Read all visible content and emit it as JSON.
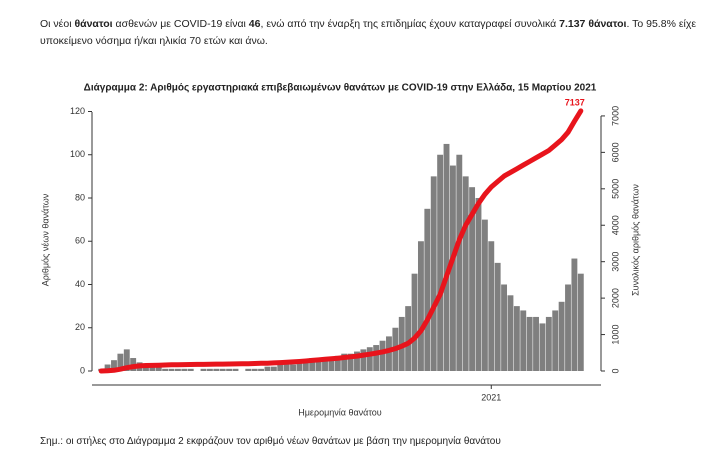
{
  "intro": [
    "Οι νέοι ",
    "θάνατοι",
    " ασθενών με COVID-19 είναι ",
    "46",
    ", ενώ από την έναρξη της επιδημίας έχουν καταγραφεί συνολικά ",
    "7.137 θάνατοι",
    ".  Το 95.8% είχε υποκείμενο νόσημα ή/και ηλικία 70 ετών και άνω."
  ],
  "chart_data": {
    "type": "bar",
    "title": "Διάγραμμα 2: Αριθμός εργαστηριακά επιβεβαιωμένων θανάτων με COVID-19 στην Ελλάδα, 15 Μαρτίου 2021",
    "xlabel": "Ημερομηνία θανάτου",
    "ylabel": "Αριθμός νέων θανάτων",
    "y2label": "Συνολικός αριθμός θανάτων",
    "categories": [
      null,
      null,
      null,
      null,
      null,
      null,
      null,
      null,
      null,
      null,
      null,
      null,
      null,
      null,
      null,
      null,
      null,
      null,
      null,
      null,
      null,
      null,
      null,
      null,
      null,
      null,
      null,
      null,
      null,
      null,
      null,
      null,
      null,
      null,
      null,
      null,
      null,
      null,
      null,
      null,
      null,
      null,
      null,
      null,
      null,
      null,
      null,
      null,
      null,
      null,
      null,
      null,
      null,
      null,
      null,
      null,
      null,
      null,
      null,
      null,
      null,
      "2021",
      null,
      null,
      null,
      null,
      null,
      null,
      null,
      null,
      null,
      null,
      null,
      null,
      null,
      null
    ],
    "series": [
      {
        "type": "bar",
        "color": "#7f7f7f",
        "values": [
          1,
          3,
          5,
          8,
          10,
          6,
          4,
          3,
          2,
          2,
          1,
          1,
          1,
          1,
          1,
          0,
          1,
          1,
          1,
          1,
          1,
          1,
          0,
          1,
          1,
          1,
          2,
          2,
          3,
          3,
          3,
          4,
          5,
          6,
          6,
          5,
          6,
          7,
          8,
          8,
          9,
          10,
          11,
          12,
          14,
          16,
          20,
          25,
          30,
          45,
          60,
          75,
          90,
          100,
          105,
          95,
          100,
          90,
          85,
          80,
          70,
          60,
          50,
          40,
          35,
          30,
          28,
          25,
          25,
          22,
          25,
          28,
          32,
          40,
          52,
          45
        ]
      },
      {
        "type": "line",
        "axis": "y2",
        "color": "#e8141c",
        "values": [
          0,
          5,
          20,
          50,
          90,
          120,
          140,
          150,
          155,
          160,
          165,
          170,
          172,
          175,
          178,
          180,
          182,
          185,
          188,
          190,
          192,
          195,
          198,
          200,
          205,
          210,
          215,
          222,
          230,
          240,
          250,
          262,
          275,
          290,
          305,
          320,
          335,
          350,
          370,
          390,
          410,
          435,
          460,
          490,
          525,
          565,
          615,
          680,
          760,
          900,
          1100,
          1400,
          1750,
          2100,
          2600,
          3100,
          3600,
          4000,
          4300,
          4600,
          4850,
          5050,
          5200,
          5350,
          5450,
          5550,
          5650,
          5750,
          5850,
          5950,
          6050,
          6200,
          6350,
          6550,
          6850,
          7137
        ]
      }
    ],
    "ylim": [
      0,
      123
    ],
    "yticks": [
      0,
      20,
      40,
      60,
      80,
      100,
      120
    ],
    "y2lim": [
      0,
      7300
    ],
    "y2ticks": [
      0,
      1000,
      2000,
      3000,
      4000,
      5000,
      6000,
      7000
    ]
  },
  "note": "Σημ.: οι στήλες στο Διάγραμμα 2 εκφράζουν τον αριθμό νέων θανάτων με βάση την ημερομηνία θανάτου"
}
